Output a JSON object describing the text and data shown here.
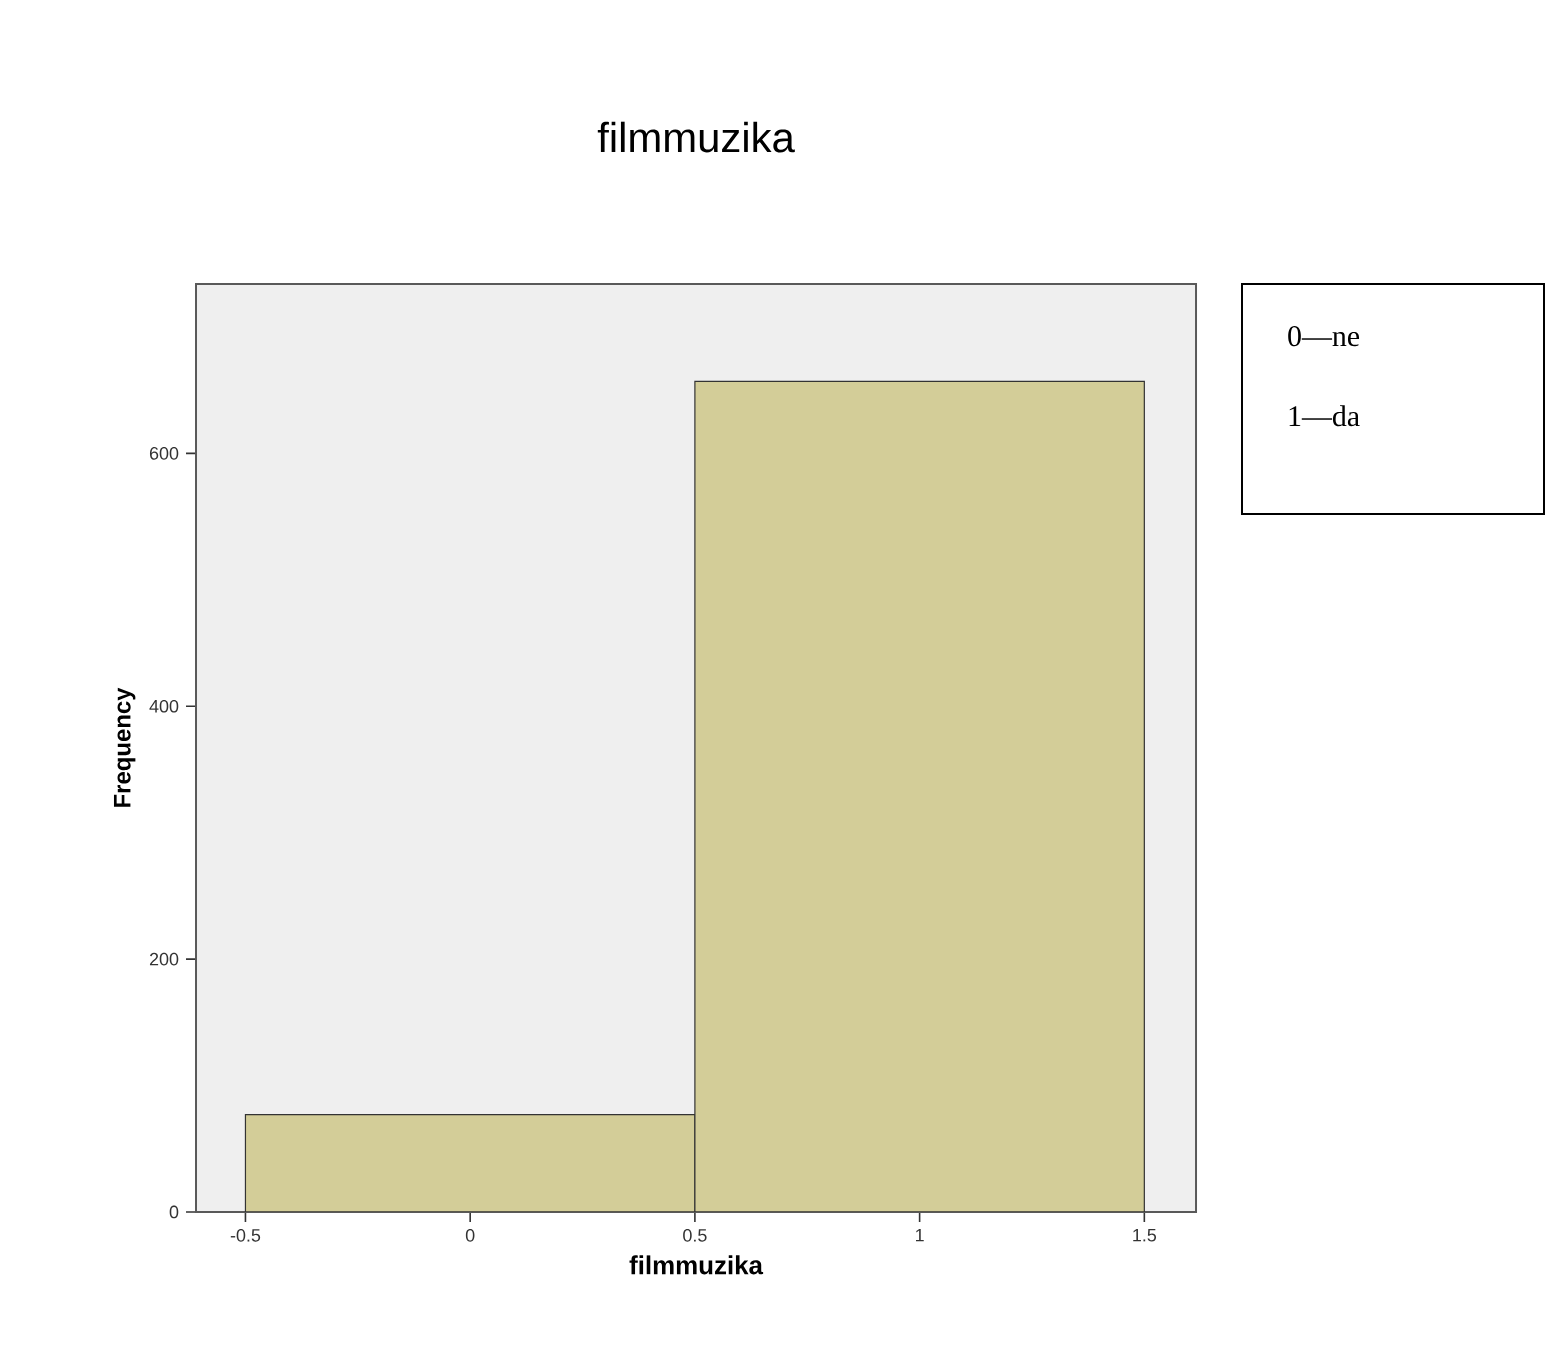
{
  "chart_data": {
    "type": "histogram",
    "title": "filmmuzika",
    "xlabel": "filmmuzika",
    "ylabel": "Frequency",
    "bins": [
      -0.5,
      0.5,
      1.5
    ],
    "values": [
      77,
      657
    ],
    "color": "#d3cd98",
    "xlim": [
      -0.61,
      1.615
    ],
    "ylim": [
      0,
      734
    ],
    "xticks": [
      -0.5,
      0,
      0.5,
      1,
      1.5
    ],
    "yticks": [
      0,
      200,
      400,
      600
    ],
    "annotations": [
      "0—ne",
      "1—da"
    ]
  }
}
